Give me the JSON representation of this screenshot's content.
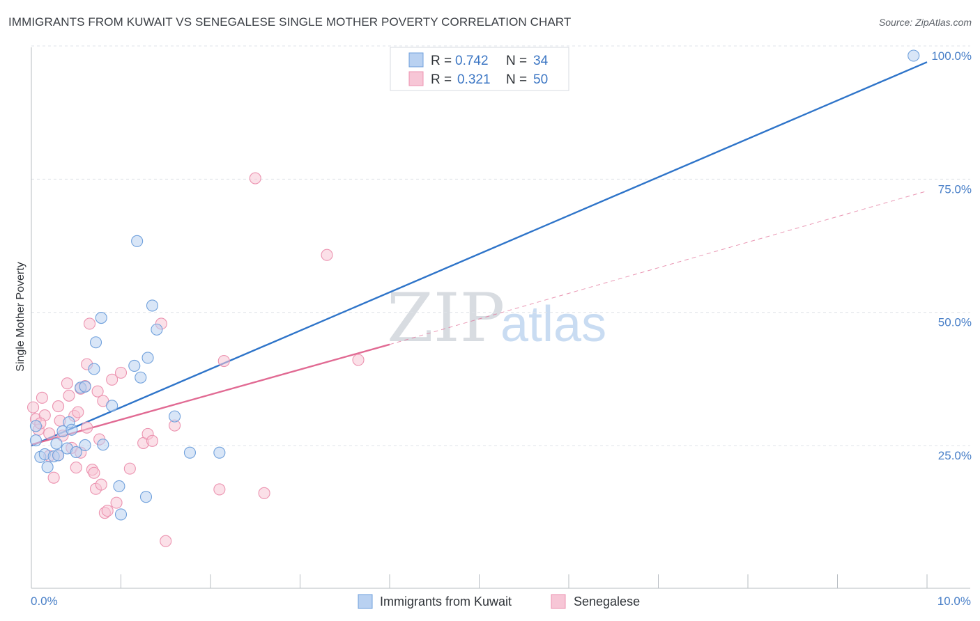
{
  "header": {
    "title": "IMMIGRANTS FROM KUWAIT VS SENEGALESE SINGLE MOTHER POVERTY CORRELATION CHART",
    "source": "Source: ZipAtlas.com"
  },
  "watermark": {
    "zip": "ZIP",
    "atlas": "atlas"
  },
  "chart_data": {
    "type": "scatter",
    "title": "IMMIGRANTS FROM KUWAIT VS SENEGALESE SINGLE MOTHER POVERTY CORRELATION CHART",
    "xlabel": "",
    "ylabel": "Single Mother Poverty",
    "xlim": [
      0,
      10
    ],
    "ylim": [
      0,
      102
    ],
    "x_tick_labels": {
      "min": "0.0%",
      "max": "10.0%"
    },
    "y_ticks": [
      {
        "value": 25,
        "label": "25.0%"
      },
      {
        "value": 50,
        "label": "50.0%"
      },
      {
        "value": 75,
        "label": "75.0%"
      },
      {
        "value": 100,
        "label": "100.0%"
      }
    ],
    "legend": {
      "position": "top-center",
      "rows": [
        {
          "r_label": "R =",
          "r_value": "0.742",
          "n_label": "N =",
          "n_value": "34"
        },
        {
          "r_label": "R =",
          "r_value": "0.321",
          "n_label": "N =",
          "n_value": "50"
        }
      ]
    },
    "series": [
      {
        "name": "Immigrants from Kuwait",
        "color": "#6fa0dc",
        "fill": "#b9d1f1",
        "line_color": "#2e74c9",
        "trend": {
          "x0": 0.0,
          "y0": 26.8,
          "x1": 10.0,
          "y1": 98.8
        },
        "points": [
          [
            0.05,
            30.5
          ],
          [
            0.05,
            27.8
          ],
          [
            0.1,
            24.7
          ],
          [
            0.15,
            25.2
          ],
          [
            0.18,
            22.8
          ],
          [
            0.25,
            24.8
          ],
          [
            0.28,
            27.2
          ],
          [
            0.3,
            25.0
          ],
          [
            0.35,
            29.5
          ],
          [
            0.4,
            26.3
          ],
          [
            0.42,
            31.2
          ],
          [
            0.45,
            29.8
          ],
          [
            0.5,
            25.6
          ],
          [
            0.55,
            37.7
          ],
          [
            0.6,
            37.9
          ],
          [
            0.6,
            26.9
          ],
          [
            0.7,
            41.2
          ],
          [
            0.72,
            46.2
          ],
          [
            0.78,
            50.8
          ],
          [
            0.8,
            27.0
          ],
          [
            0.9,
            34.3
          ],
          [
            0.98,
            19.2
          ],
          [
            1.0,
            13.9
          ],
          [
            1.15,
            41.8
          ],
          [
            1.18,
            65.2
          ],
          [
            1.22,
            39.6
          ],
          [
            1.28,
            17.2
          ],
          [
            1.3,
            43.3
          ],
          [
            1.35,
            53.1
          ],
          [
            1.4,
            48.6
          ],
          [
            1.6,
            32.3
          ],
          [
            1.77,
            25.5
          ],
          [
            2.1,
            25.5
          ],
          [
            9.85,
            100.0
          ]
        ]
      },
      {
        "name": "Senegalese",
        "color": "#ec93b0",
        "fill": "#f7c6d6",
        "line_color": "#e16a93",
        "trend": {
          "x0": 0.0,
          "y0": 27.0,
          "x1": 4.0,
          "y1": 45.8
        },
        "trend_extension": {
          "x0": 4.0,
          "y0": 45.8,
          "x1": 10.0,
          "y1": 74.6
        },
        "points": [
          [
            0.02,
            34.0
          ],
          [
            0.05,
            31.8
          ],
          [
            0.08,
            29.8
          ],
          [
            0.12,
            35.8
          ],
          [
            0.15,
            32.5
          ],
          [
            0.2,
            24.9
          ],
          [
            0.25,
            20.8
          ],
          [
            0.3,
            34.2
          ],
          [
            0.32,
            31.5
          ],
          [
            0.35,
            28.7
          ],
          [
            0.4,
            38.5
          ],
          [
            0.42,
            36.2
          ],
          [
            0.45,
            26.4
          ],
          [
            0.48,
            32.4
          ],
          [
            0.5,
            22.7
          ],
          [
            0.52,
            33.1
          ],
          [
            0.55,
            37.5
          ],
          [
            0.6,
            38.0
          ],
          [
            0.62,
            42.1
          ],
          [
            0.65,
            49.7
          ],
          [
            0.68,
            22.3
          ],
          [
            0.7,
            21.7
          ],
          [
            0.72,
            18.7
          ],
          [
            0.74,
            37.0
          ],
          [
            0.76,
            28.0
          ],
          [
            0.78,
            19.5
          ],
          [
            0.8,
            35.2
          ],
          [
            0.82,
            14.2
          ],
          [
            0.85,
            14.6
          ],
          [
            0.9,
            39.2
          ],
          [
            0.95,
            16.1
          ],
          [
            1.0,
            40.5
          ],
          [
            1.1,
            22.5
          ],
          [
            1.25,
            27.3
          ],
          [
            1.3,
            29.0
          ],
          [
            1.35,
            27.7
          ],
          [
            1.45,
            49.7
          ],
          [
            1.5,
            8.9
          ],
          [
            1.6,
            30.6
          ],
          [
            2.1,
            18.6
          ],
          [
            2.15,
            42.7
          ],
          [
            2.5,
            77.0
          ],
          [
            2.6,
            17.9
          ],
          [
            3.3,
            62.6
          ],
          [
            3.65,
            42.9
          ],
          [
            0.1,
            31.0
          ],
          [
            0.3,
            25.0
          ],
          [
            0.55,
            25.5
          ],
          [
            0.62,
            30.2
          ],
          [
            0.2,
            29.1
          ]
        ]
      }
    ]
  },
  "bottom_legend": [
    {
      "label": "Immigrants from Kuwait"
    },
    {
      "label": "Senegalese"
    }
  ]
}
